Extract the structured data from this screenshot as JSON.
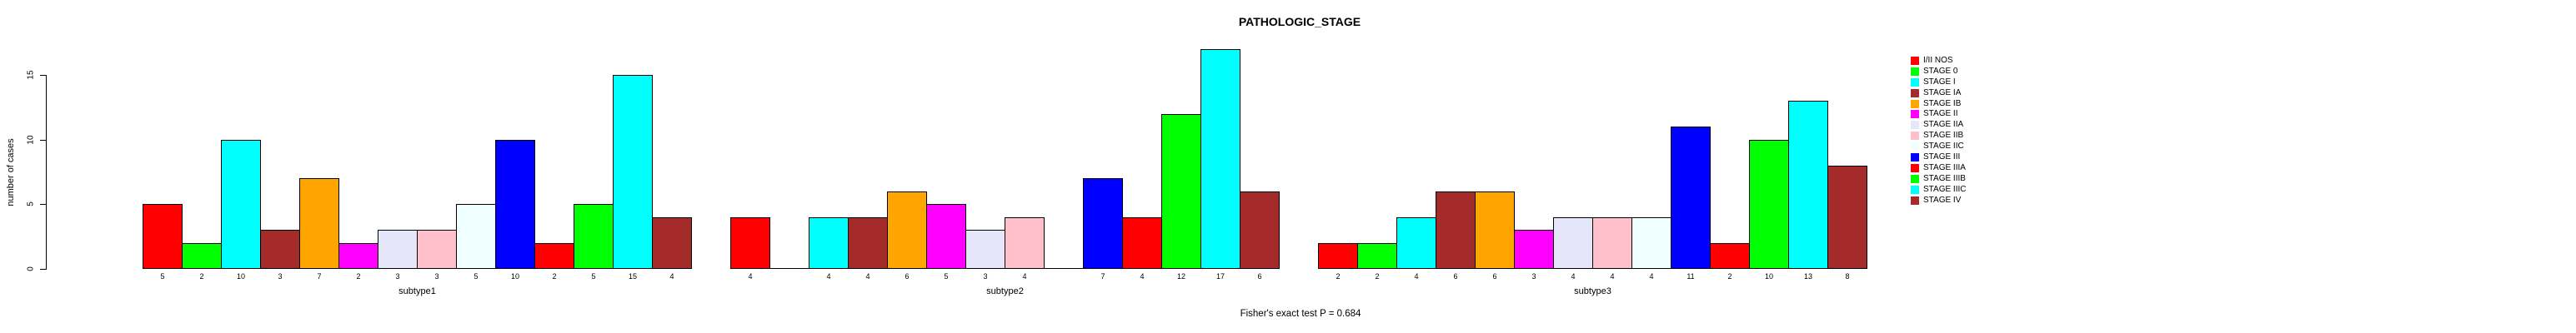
{
  "title": "PATHOLOGIC_STAGE",
  "footer_annotation": "Fisher's exact test P = 0.684",
  "y_axis": {
    "label": "number of cases",
    "ticks": [
      "0",
      "5",
      "10",
      "15"
    ]
  },
  "chart_data": {
    "type": "bar",
    "title": "PATHOLOGIC_STAGE",
    "xlabel": "",
    "ylabel": "number of cases",
    "ylim": [
      0,
      17
    ],
    "yticks": [
      0,
      5,
      10,
      15
    ],
    "grid": false,
    "legend_position": "right-outside",
    "annotation": "Fisher's exact test P = 0.684",
    "categories": [
      "I/II NOS",
      "STAGE 0",
      "STAGE I",
      "STAGE IA",
      "STAGE IB",
      "STAGE II",
      "STAGE IIA",
      "STAGE IIB",
      "STAGE IIC",
      "STAGE III",
      "STAGE IIIA",
      "STAGE IIIB",
      "STAGE IIIC",
      "STAGE IV"
    ],
    "colors": [
      "#FF0000",
      "#00FF00",
      "#00FFFF",
      "#A52A2A",
      "#FFA500",
      "#FF00FF",
      "#E6E6FA",
      "#FFC0CB",
      "#F0FFFF",
      "#0000FF",
      "#FF0000",
      "#00FF00",
      "#00FFFF",
      "#A52A2A"
    ],
    "groups": [
      {
        "label": "subtype1",
        "values": [
          5,
          2,
          10,
          3,
          7,
          2,
          3,
          3,
          5,
          10,
          2,
          5,
          15,
          4
        ]
      },
      {
        "label": "subtype2",
        "values": [
          4,
          0,
          4,
          4,
          6,
          5,
          3,
          4,
          0,
          7,
          4,
          12,
          17,
          6
        ]
      },
      {
        "label": "subtype3",
        "values": [
          2,
          2,
          4,
          6,
          6,
          3,
          4,
          4,
          4,
          11,
          2,
          10,
          13,
          8
        ]
      }
    ]
  }
}
